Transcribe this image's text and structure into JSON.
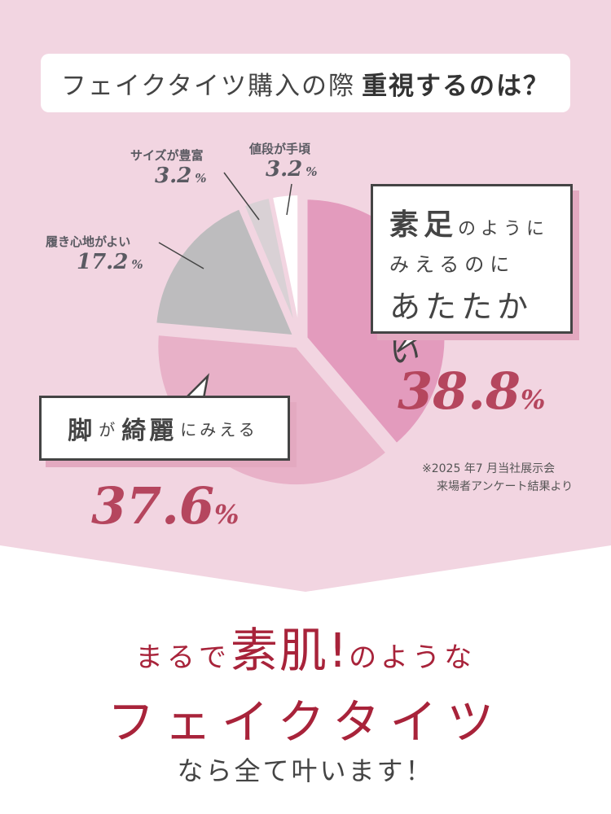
{
  "colors": {
    "background": "#f2d5e1",
    "accent": "#b5465e",
    "headline": "#a8233a"
  },
  "title": {
    "normal": "フェイクタイツ購入の際",
    "bold": "重視するのは？"
  },
  "chart_data": {
    "type": "pie",
    "title": "フェイクタイツ購入の際 重視するのは？",
    "slices": [
      {
        "label": "素足のようにみえるのにあたたかい",
        "value": 38.8,
        "color": "#e39bbd"
      },
      {
        "label": "脚が綺麗にみえる",
        "value": 37.6,
        "color": "#e8b1c8"
      },
      {
        "label": "履き心地がよい",
        "value": 17.2,
        "color": "#bdbcbe"
      },
      {
        "label": "サイズが豊富",
        "value": 3.2,
        "color": "#d9d1d5"
      },
      {
        "label": "値段が手頃",
        "value": 3.2,
        "color": "#ffffff"
      }
    ],
    "start": "12 o'clock",
    "direction": "clockwise",
    "exploded": true
  },
  "labels": {
    "comfort": {
      "name": "履き心地がよい",
      "value": "17.2",
      "unit": "%"
    },
    "size": {
      "name": "サイズが豊富",
      "value": "3.2",
      "unit": "%"
    },
    "price": {
      "name": "値段が手頃",
      "value": "3.2",
      "unit": "%"
    }
  },
  "bubble1": {
    "k1": "素足",
    "h1": "のように",
    "l2": "みえるのに",
    "l3": "あたたかい",
    "pct": "38.8",
    "unit": "%"
  },
  "bubble2": {
    "k1": "脚",
    "h1": "が",
    "k2": "綺麗",
    "h2": "にみえる",
    "pct": "37.6",
    "unit": "%"
  },
  "note": {
    "line1": "※2025 年7 月当社展示会",
    "line2": "来場者アンケート結果より"
  },
  "headline": {
    "pre": "まるで",
    "em": "素肌!",
    "post": "のような",
    "line2": "フェイクタイツ",
    "line3": "なら全て叶います！"
  }
}
